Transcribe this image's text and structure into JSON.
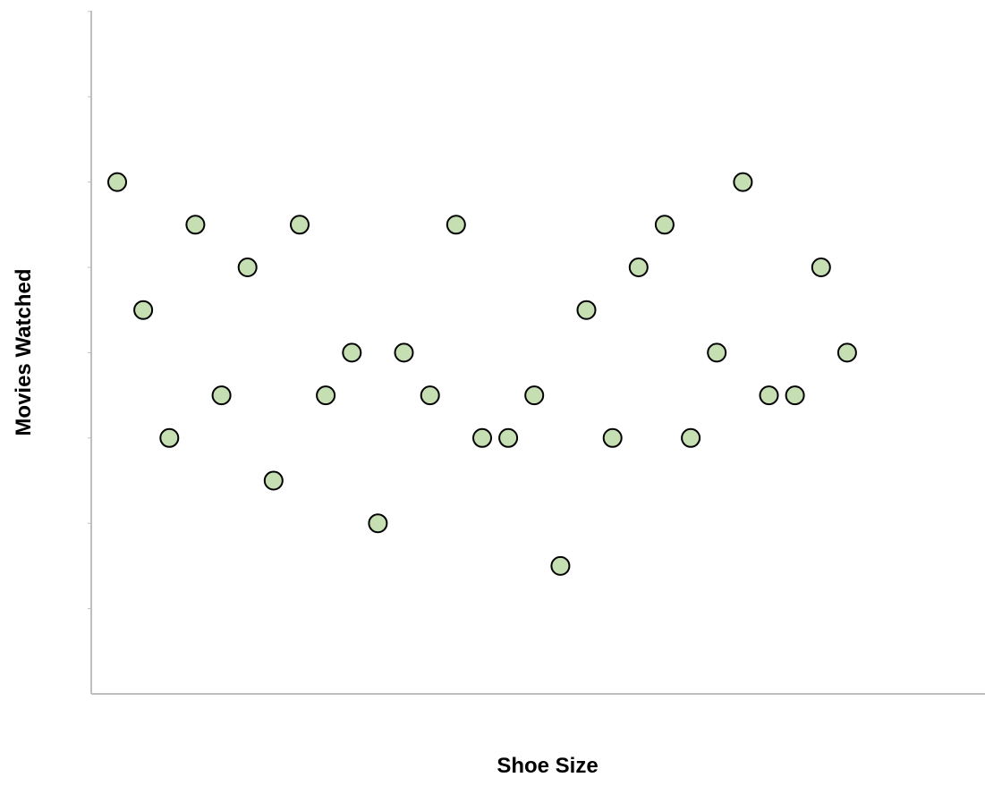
{
  "chart_data": {
    "type": "scatter",
    "title": "",
    "xlabel": "Shoe Size",
    "ylabel": "Movies Watched",
    "grid": false,
    "legend": "none",
    "tick_labels_shown": false,
    "xlim": [
      0,
      34
    ],
    "ylim": [
      0,
      14
    ],
    "y_tick_count": 8,
    "points": [
      {
        "x": 1,
        "y": 12
      },
      {
        "x": 2,
        "y": 9
      },
      {
        "x": 3,
        "y": 6
      },
      {
        "x": 4,
        "y": 11
      },
      {
        "x": 5,
        "y": 7
      },
      {
        "x": 6,
        "y": 10
      },
      {
        "x": 7,
        "y": 5
      },
      {
        "x": 8,
        "y": 11
      },
      {
        "x": 9,
        "y": 7
      },
      {
        "x": 10,
        "y": 8
      },
      {
        "x": 11,
        "y": 4
      },
      {
        "x": 12,
        "y": 8
      },
      {
        "x": 13,
        "y": 7
      },
      {
        "x": 14,
        "y": 11
      },
      {
        "x": 15,
        "y": 6
      },
      {
        "x": 16,
        "y": 6
      },
      {
        "x": 17,
        "y": 7
      },
      {
        "x": 18,
        "y": 3
      },
      {
        "x": 19,
        "y": 9
      },
      {
        "x": 20,
        "y": 6
      },
      {
        "x": 21,
        "y": 10
      },
      {
        "x": 22,
        "y": 11
      },
      {
        "x": 23,
        "y": 6
      },
      {
        "x": 24,
        "y": 8
      },
      {
        "x": 25,
        "y": 12
      },
      {
        "x": 26,
        "y": 7
      },
      {
        "x": 27,
        "y": 7
      },
      {
        "x": 28,
        "y": 10
      },
      {
        "x": 29,
        "y": 8
      }
    ]
  },
  "colors": {
    "marker_fill": "#c5dfb2",
    "marker_stroke": "#000000",
    "axis": "#bfbfbf"
  }
}
